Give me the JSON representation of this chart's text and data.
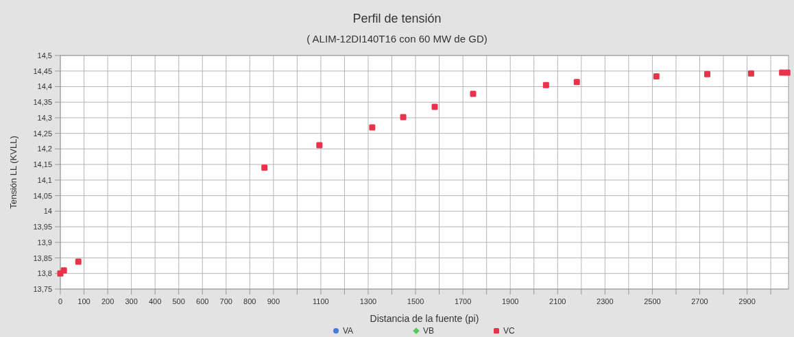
{
  "chart_data": {
    "type": "scatter",
    "title": "Perfil de tensión",
    "subtitle": "( ALIM-12DI140T16 con 60 MW de GD)",
    "xlabel": "Distancia de la fuente (pi)",
    "ylabel": "Tensión LL (KVLL)",
    "x": [
      0,
      15,
      76,
      862,
      1094,
      1317,
      1448,
      1581,
      1743,
      2051,
      2181,
      2517,
      2732,
      2917,
      3048,
      3070
    ],
    "series": [
      {
        "name": "VA",
        "color": "#4a7bd8",
        "marker": "circle",
        "values": [
          null,
          null,
          null,
          null,
          null,
          null,
          null,
          null,
          null,
          null,
          null,
          null,
          null,
          null,
          null,
          null
        ]
      },
      {
        "name": "VB",
        "color": "#55c855",
        "marker": "diamond",
        "values": [
          null,
          null,
          null,
          null,
          null,
          null,
          null,
          null,
          null,
          null,
          null,
          null,
          null,
          null,
          null,
          null
        ]
      },
      {
        "name": "VC",
        "color": "#e8334a",
        "marker": "square",
        "values": [
          13.8,
          13.81,
          13.838,
          14.14,
          14.212,
          14.269,
          14.302,
          14.335,
          14.377,
          14.405,
          14.415,
          14.433,
          14.44,
          14.442,
          14.445,
          14.445
        ]
      }
    ],
    "xlim": [
      0,
      3075
    ],
    "xticks": [
      0,
      100,
      200,
      300,
      400,
      500,
      600,
      700,
      800,
      900,
      {
        "value": 1000,
        "label": null
      },
      1100,
      {
        "value": 1200,
        "label": null
      },
      1300,
      {
        "value": 1400,
        "label": null
      },
      1500,
      {
        "value": 1600,
        "label": null
      },
      1700,
      {
        "value": 1800,
        "label": null
      },
      1900,
      {
        "value": 2000,
        "label": null
      },
      2100,
      {
        "value": 2200,
        "label": null
      },
      2300,
      {
        "value": 2400,
        "label": null
      },
      2500,
      {
        "value": 2600,
        "label": null
      },
      2700,
      {
        "value": 2800,
        "label": null
      },
      2900,
      {
        "value": 3000,
        "label": null
      }
    ],
    "ylim": [
      13.75,
      14.5
    ],
    "yticks": [
      {
        "value": 13.75,
        "label": "13,75"
      },
      {
        "value": 13.8,
        "label": "13,8"
      },
      {
        "value": 13.85,
        "label": "13,85"
      },
      {
        "value": 13.9,
        "label": "13,9"
      },
      {
        "value": 13.95,
        "label": "13,95"
      },
      {
        "value": 14,
        "label": "14"
      },
      {
        "value": 14.05,
        "label": "14,05"
      },
      {
        "value": 14.1,
        "label": "14,1"
      },
      {
        "value": 14.15,
        "label": "14,15"
      },
      {
        "value": 14.2,
        "label": "14,2"
      },
      {
        "value": 14.25,
        "label": "14,25"
      },
      {
        "value": 14.3,
        "label": "14,3"
      },
      {
        "value": 14.35,
        "label": "14,35"
      },
      {
        "value": 14.4,
        "label": "14,4"
      },
      {
        "value": 14.45,
        "label": "14,45"
      },
      {
        "value": 14.5,
        "label": "14,5"
      }
    ],
    "grid": true,
    "legend": "bottom"
  }
}
